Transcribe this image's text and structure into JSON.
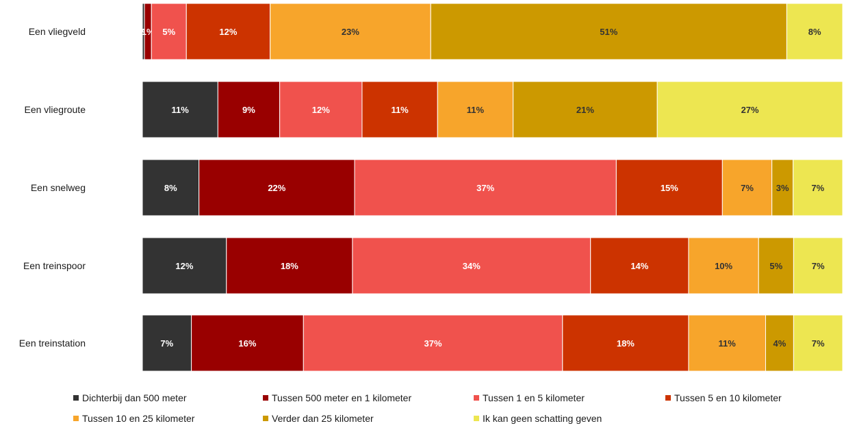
{
  "chart_data": {
    "type": "bar",
    "orientation": "horizontal",
    "stacked": true,
    "percent_stacked": true,
    "categories": [
      "Een vliegveld",
      "Een vliegroute",
      "Een snelweg",
      "Een treinspoor",
      "Een treinstation"
    ],
    "series": [
      {
        "name": "Dichterbij dan 500 meter",
        "color": "#333333",
        "values": [
          0.3,
          11,
          8,
          12,
          7
        ],
        "labels": [
          "0%",
          "11%",
          "8%",
          "12%",
          "7%"
        ]
      },
      {
        "name": "Tussen 500 meter en 1 kilometer",
        "color": "#990000",
        "values": [
          1,
          9,
          22,
          18,
          16
        ],
        "labels": [
          "1%",
          "9%",
          "22%",
          "18%",
          "16%"
        ]
      },
      {
        "name": "Tussen 1 en 5 kilometer",
        "color": "#F0524D",
        "values": [
          5,
          12,
          37,
          34,
          37
        ],
        "labels": [
          "5%",
          "12%",
          "37%",
          "34%",
          "37%"
        ]
      },
      {
        "name": "Tussen 5 en 10 kilometer",
        "color": "#CC3300",
        "values": [
          12,
          11,
          15,
          14,
          18
        ],
        "labels": [
          "12%",
          "11%",
          "15%",
          "14%",
          "18%"
        ]
      },
      {
        "name": "Tussen 10 en 25 kilometer",
        "color": "#F7A52B",
        "values": [
          23,
          11,
          7,
          10,
          11
        ],
        "labels": [
          "23%",
          "11%",
          "7%",
          "10%",
          "11%"
        ]
      },
      {
        "name": "Verder dan 25 kilometer",
        "color": "#CC9900",
        "values": [
          51,
          21,
          3,
          5,
          4
        ],
        "labels": [
          "51%",
          "21%",
          "3%",
          "5%",
          "4%"
        ]
      },
      {
        "name": "Ik kan geen schatting geven",
        "color": "#EDE651",
        "values": [
          8,
          27,
          7,
          7,
          7
        ],
        "labels": [
          "8%",
          "27%",
          "7%",
          "7%",
          "7%"
        ]
      }
    ],
    "label_colors": {
      "dark": "#ffffff",
      "light": "#333333"
    },
    "xlim": [
      0,
      100
    ],
    "grid": false,
    "legend_position": "bottom"
  }
}
